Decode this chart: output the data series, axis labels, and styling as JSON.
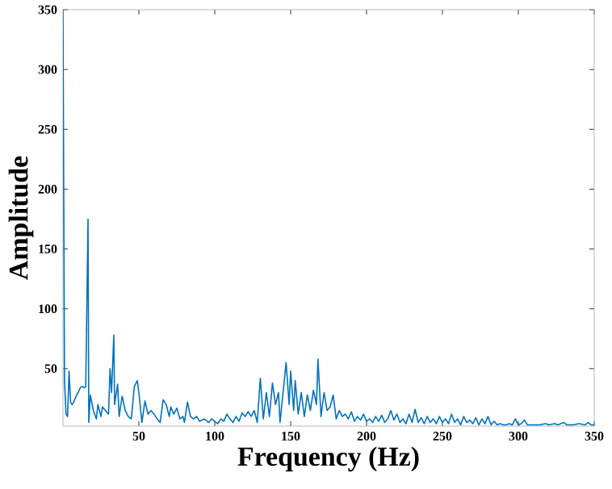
{
  "chart_data": {
    "type": "line",
    "xlabel": "Frequency (Hz)",
    "ylabel": "Amplitude",
    "xlim": [
      0,
      350
    ],
    "ylim": [
      2,
      350
    ],
    "xticks": [
      50,
      100,
      150,
      200,
      250,
      300,
      350
    ],
    "yticks": [
      50,
      100,
      150,
      200,
      250,
      300,
      350
    ],
    "grid": false,
    "series": [
      {
        "color": "#0072bd",
        "x": [
          0,
          1,
          2,
          3,
          4,
          5,
          6,
          7,
          8,
          9,
          10,
          11,
          12,
          13,
          14,
          15,
          16.5,
          17,
          18,
          20,
          22,
          23,
          25,
          26,
          28,
          30,
          31,
          32,
          33.5,
          34,
          36,
          37,
          39,
          41,
          43,
          45,
          47,
          49,
          50,
          52,
          54,
          56,
          58,
          60,
          62,
          64,
          66,
          68,
          70,
          71,
          73,
          75,
          77,
          79,
          80,
          82,
          84,
          86,
          88,
          90,
          93,
          96,
          98,
          100,
          102,
          104,
          106,
          108,
          110,
          112,
          114,
          116,
          118,
          120,
          122,
          124,
          126,
          128,
          130,
          132,
          134,
          136,
          138,
          140,
          142,
          143,
          145,
          147,
          149,
          150,
          152,
          153,
          155,
          157,
          159,
          161,
          163,
          165,
          167,
          168,
          170,
          172,
          174,
          176,
          178,
          180,
          182,
          184,
          186,
          188,
          190,
          192,
          194,
          196,
          198,
          200,
          202,
          204,
          206,
          208,
          210,
          212,
          214,
          216,
          218,
          220,
          222,
          224,
          226,
          228,
          230,
          232,
          234,
          236,
          238,
          240,
          242,
          244,
          246,
          248,
          250,
          252,
          254,
          256,
          258,
          260,
          262,
          264,
          266,
          268,
          270,
          272,
          274,
          276,
          278,
          280,
          282,
          284,
          286,
          288,
          290,
          292,
          294,
          296,
          298,
          300,
          302,
          304,
          306,
          310,
          314,
          318,
          320,
          324,
          326,
          330,
          332,
          336,
          340,
          344,
          346,
          348,
          350
        ],
        "values": [
          350,
          40,
          12,
          10,
          48,
          22,
          20,
          22,
          25,
          28,
          30,
          33,
          35,
          35,
          34,
          35,
          175,
          5,
          28,
          15,
          8,
          20,
          10,
          18,
          15,
          12,
          50,
          30,
          78,
          20,
          37,
          10,
          27,
          15,
          10,
          8,
          35,
          40,
          30,
          5,
          23,
          12,
          15,
          12,
          8,
          5,
          24,
          20,
          10,
          18,
          12,
          17,
          8,
          10,
          5,
          22,
          10,
          8,
          10,
          6,
          8,
          5,
          8,
          6,
          4,
          8,
          6,
          12,
          8,
          5,
          10,
          6,
          13,
          10,
          14,
          10,
          15,
          5,
          42,
          8,
          30,
          10,
          38,
          20,
          30,
          5,
          30,
          55,
          20,
          48,
          15,
          40,
          12,
          30,
          10,
          28,
          15,
          32,
          20,
          58,
          10,
          30,
          15,
          18,
          28,
          8,
          15,
          10,
          12,
          8,
          14,
          6,
          10,
          7,
          12,
          6,
          8,
          5,
          10,
          6,
          11,
          5,
          8,
          15,
          7,
          12,
          5,
          8,
          4,
          12,
          5,
          16,
          5,
          9,
          4,
          10,
          5,
          8,
          4,
          10,
          5,
          8,
          4,
          12,
          5,
          8,
          3,
          10,
          5,
          7,
          4,
          9,
          3,
          8,
          4,
          10,
          3,
          6,
          3,
          4,
          3,
          3,
          4,
          3,
          8,
          3,
          4,
          7,
          3,
          3,
          3,
          4,
          3,
          4,
          3,
          5,
          3,
          3,
          4,
          3,
          5,
          3,
          3
        ]
      }
    ]
  }
}
